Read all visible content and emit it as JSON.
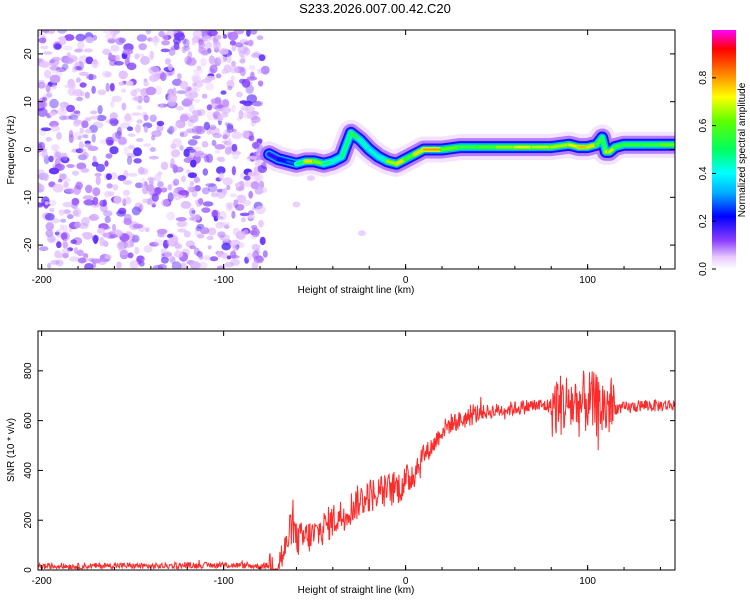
{
  "title": "S233.2026.007.00.42.C20",
  "colors": {
    "snr_line": "#ff2a2a",
    "spectrum_noise": "#8a3cff",
    "frame": "#000000"
  },
  "chart_data": [
    {
      "type": "heatmap",
      "name": "spectrogram",
      "xlabel": "Height of straight line (km)",
      "ylabel": "Frequency (Hz)",
      "xlim": [
        -202,
        148
      ],
      "ylim": [
        -25,
        25
      ],
      "xticks": [
        -200,
        -100,
        0,
        100
      ],
      "yticks": [
        -20,
        -10,
        0,
        10,
        20
      ],
      "colorbar": {
        "label": "Normalized spectral amplitude",
        "range": [
          0.0,
          1.0
        ],
        "ticks": [
          0.0,
          0.2,
          0.4,
          0.6,
          0.8
        ],
        "tick_labels": [
          "0.0",
          "0.2",
          "0.4",
          "0.6",
          "0.8"
        ]
      },
      "noise_region_x": [
        -202,
        -77
      ],
      "signal_track": {
        "x": [
          -75,
          -70,
          -65,
          -60,
          -55,
          -50,
          -45,
          -40,
          -35,
          -30,
          -25,
          -20,
          -15,
          -10,
          -5,
          0,
          5,
          10,
          20,
          30,
          40,
          50,
          60,
          70,
          80,
          90,
          95,
          100,
          105,
          108,
          110,
          112,
          115,
          120,
          130,
          140,
          148
        ],
        "freq_hz": [
          -1,
          -2,
          -2.5,
          -3,
          -2.5,
          -2.5,
          -3,
          -2.5,
          -1.5,
          3.5,
          2,
          0,
          -1.5,
          -2.5,
          -3,
          -2,
          -1,
          0,
          0,
          0.5,
          0.5,
          0.5,
          0.5,
          0.5,
          0.5,
          1,
          0.5,
          0.5,
          1,
          2.5,
          -0.5,
          -0.5,
          0.5,
          1,
          1,
          1,
          1
        ],
        "amplitude": [
          0.2,
          0.2,
          0.25,
          0.3,
          0.7,
          0.8,
          0.5,
          0.5,
          0.4,
          0.6,
          0.5,
          0.4,
          0.45,
          0.45,
          0.9,
          0.6,
          0.6,
          0.9,
          0.7,
          0.55,
          0.6,
          0.6,
          0.7,
          0.7,
          0.65,
          0.7,
          0.75,
          0.8,
          0.7,
          0.5,
          0.6,
          0.85,
          0.55,
          0.6,
          0.55,
          0.6,
          0.65
        ]
      }
    },
    {
      "type": "line",
      "name": "snr",
      "xlabel": "Height of straight line (km)",
      "ylabel": "SNR (10 * v/v)",
      "xlim": [
        -202,
        148
      ],
      "ylim": [
        0,
        960
      ],
      "xticks": [
        -200,
        -100,
        0,
        100
      ],
      "yticks": [
        0,
        200,
        400,
        600,
        800
      ],
      "series": [
        {
          "name": "SNR",
          "x": [
            -202,
            -180,
            -160,
            -140,
            -120,
            -100,
            -90,
            -80,
            -75,
            -70,
            -66,
            -64,
            -62,
            -60,
            -55,
            -50,
            -45,
            -40,
            -35,
            -30,
            -25,
            -20,
            -15,
            -10,
            -5,
            0,
            5,
            10,
            15,
            20,
            25,
            30,
            40,
            50,
            60,
            70,
            80,
            90,
            95,
            100,
            105,
            110,
            112,
            115,
            120,
            130,
            140,
            148
          ],
          "y": [
            15,
            15,
            18,
            15,
            18,
            20,
            18,
            15,
            18,
            30,
            80,
            150,
            180,
            120,
            130,
            140,
            170,
            200,
            220,
            250,
            280,
            300,
            310,
            320,
            330,
            350,
            400,
            460,
            500,
            560,
            590,
            600,
            630,
            640,
            650,
            660,
            660,
            670,
            660,
            680,
            660,
            650,
            660,
            650,
            650,
            660,
            660,
            665
          ]
        }
      ],
      "noise_amplitude": [
        {
          "x_from": -202,
          "x_to": -75,
          "amp": 12
        },
        {
          "x_from": -75,
          "x_to": 10,
          "amp": 70
        },
        {
          "x_from": 10,
          "x_to": 40,
          "amp": 40
        },
        {
          "x_from": 40,
          "x_to": 80,
          "amp": 30
        },
        {
          "x_from": 80,
          "x_to": 115,
          "amp": 130
        },
        {
          "x_from": 115,
          "x_to": 148,
          "amp": 25
        }
      ]
    }
  ]
}
